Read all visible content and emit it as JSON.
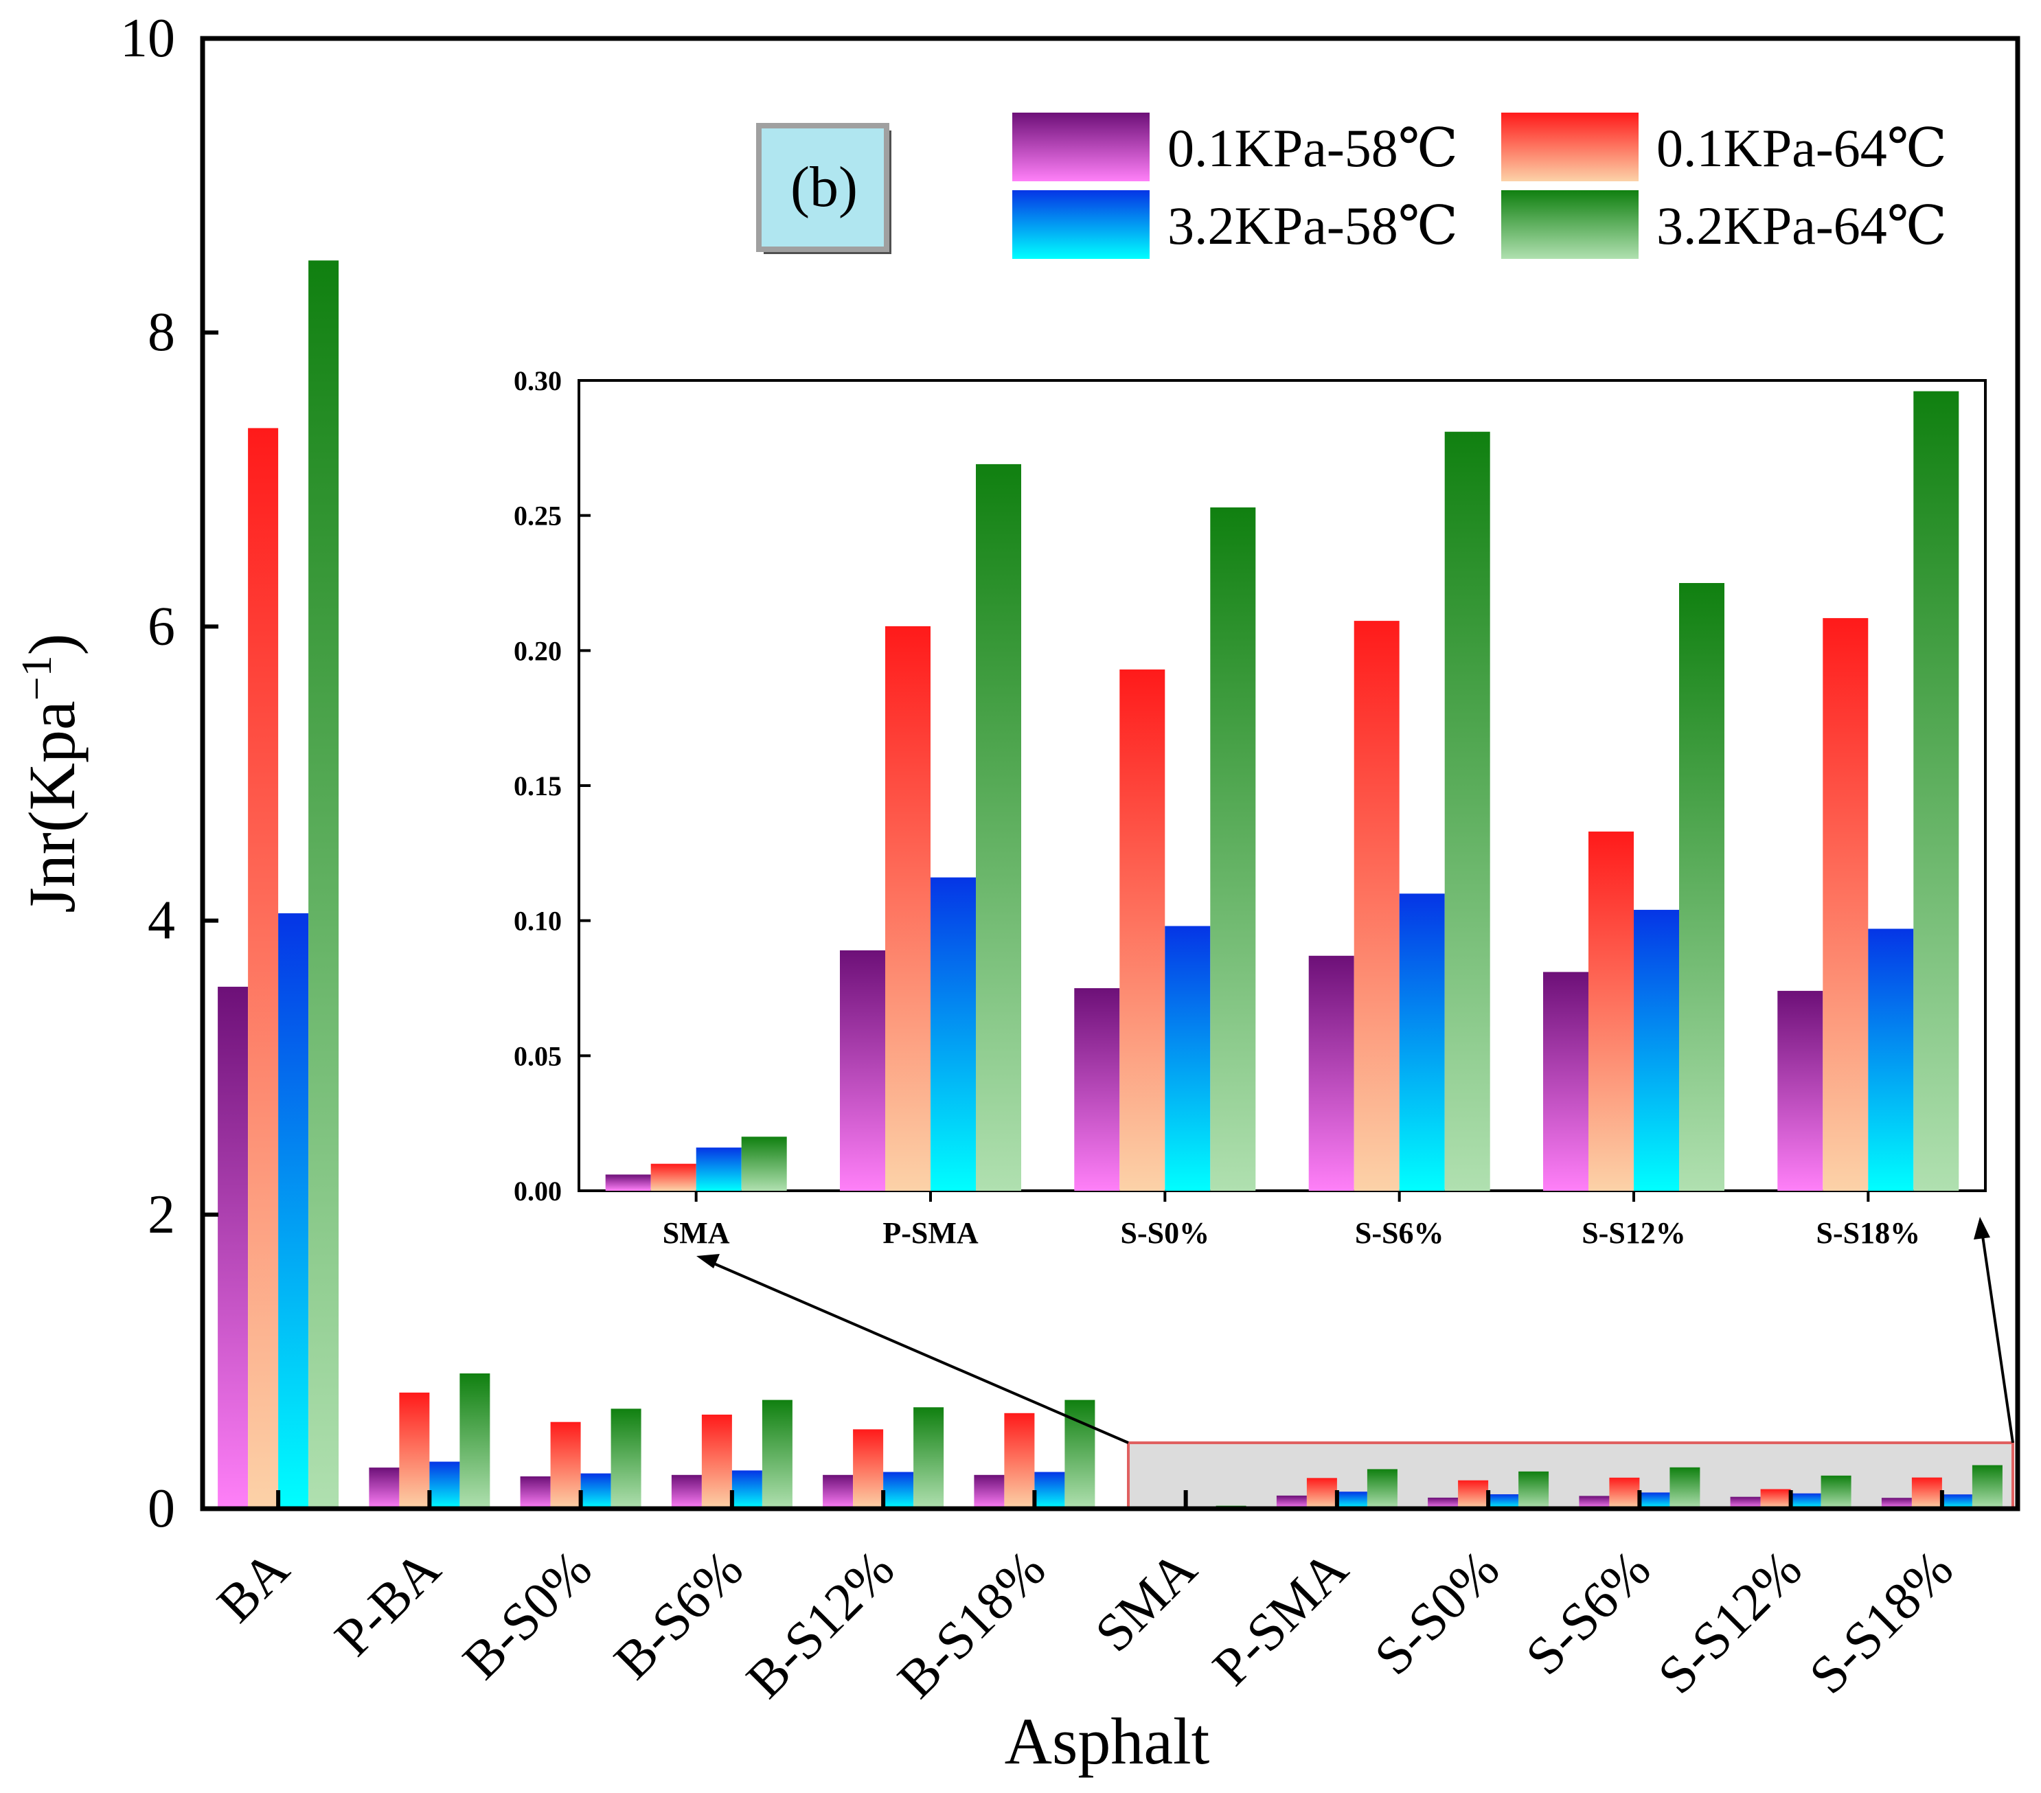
{
  "chart_data": [
    {
      "type": "bar",
      "panel_label": "(b)",
      "title": "",
      "xlabel": "Asphalt",
      "ylabel": "Jnr(Kpa",
      "ylabel_superscript": "−1",
      "ylabel_close": ")",
      "ylim": [
        0,
        10
      ],
      "yticks": [
        "0",
        "2",
        "4",
        "6",
        "8",
        "10"
      ],
      "categories": [
        "BA",
        "P-BA",
        "B-S0%",
        "B-S6%",
        "B-S12%",
        "B-S18%",
        "SMA",
        "P-SMA",
        "S-S0%",
        "S-S6%",
        "S-S12%",
        "S-S18%"
      ],
      "series": [
        {
          "name": "0.1KPa-58℃",
          "values": [
            3.55,
            0.28,
            0.22,
            0.23,
            0.23,
            0.23,
            0.006,
            0.089,
            0.075,
            0.087,
            0.081,
            0.074
          ]
        },
        {
          "name": "0.1KPa-64℃",
          "values": [
            7.35,
            0.79,
            0.59,
            0.64,
            0.54,
            0.65,
            0.01,
            0.209,
            0.193,
            0.211,
            0.133,
            0.212
          ]
        },
        {
          "name": "3.2KPa-58℃",
          "values": [
            4.05,
            0.32,
            0.24,
            0.26,
            0.25,
            0.25,
            0.016,
            0.116,
            0.098,
            0.11,
            0.104,
            0.097
          ]
        },
        {
          "name": "3.2KPa-64℃",
          "values": [
            8.49,
            0.92,
            0.68,
            0.74,
            0.69,
            0.74,
            0.02,
            0.269,
            0.253,
            0.281,
            0.225,
            0.296
          ]
        }
      ],
      "legend": "top-right",
      "grid": false
    },
    {
      "type": "bar",
      "role": "inset",
      "title": "",
      "xlabel": "",
      "ylabel": "",
      "ylim": [
        0,
        0.3
      ],
      "yticks": [
        "0.00",
        "0.05",
        "0.10",
        "0.15",
        "0.20",
        "0.25",
        "0.30"
      ],
      "categories": [
        "SMA",
        "P-SMA",
        "S-S0%",
        "S-S6%",
        "S-S12%",
        "S-S18%"
      ],
      "series": [
        {
          "name": "0.1KPa-58℃",
          "values": [
            0.006,
            0.089,
            0.075,
            0.087,
            0.081,
            0.074
          ]
        },
        {
          "name": "0.1KPa-64℃",
          "values": [
            0.01,
            0.209,
            0.193,
            0.211,
            0.133,
            0.212
          ]
        },
        {
          "name": "3.2KPa-58℃",
          "values": [
            0.016,
            0.116,
            0.098,
            0.11,
            0.104,
            0.097
          ]
        },
        {
          "name": "3.2KPa-64℃",
          "values": [
            0.02,
            0.269,
            0.253,
            0.281,
            0.225,
            0.296
          ]
        }
      ],
      "grid": false
    }
  ],
  "colors": {
    "s1_top": "#6d1078",
    "s1_bottom": "#ff80f8",
    "s2_top": "#ff1a1a",
    "s2_bottom": "#fcd2a8",
    "s3_top": "#0535e6",
    "s3_bottom": "#00ffff",
    "s4_top": "#108010",
    "s4_bottom": "#b0e0b0",
    "highlight_fill": "#dcdcdc",
    "highlight_stroke": "#e06060",
    "panel_fill": "#b0e6f0"
  }
}
